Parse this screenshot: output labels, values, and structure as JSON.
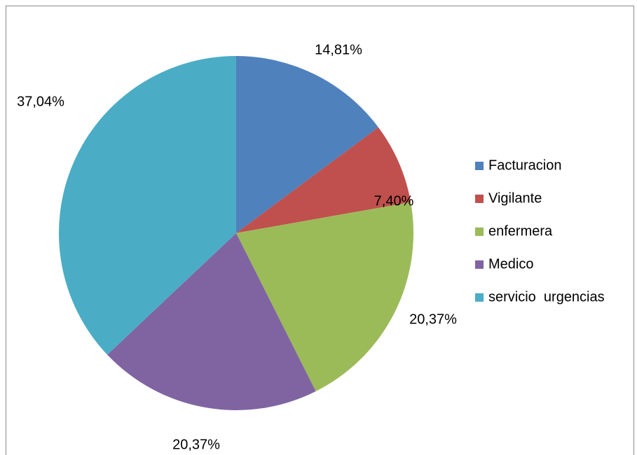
{
  "chart_data": {
    "type": "pie",
    "categories": [
      "Facturacion",
      "Vigilante",
      "enfermera",
      "Medico",
      "servicio  urgencias"
    ],
    "values": [
      14.81,
      7.4,
      20.37,
      20.37,
      37.04
    ],
    "value_labels": [
      "14,81%",
      "7,40%",
      "20,37%",
      "20,37%",
      "37,04%"
    ],
    "colors": [
      "#4f81bd",
      "#c0504d",
      "#9bbb59",
      "#8064a2",
      "#4bacc6"
    ],
    "legend": "right"
  }
}
